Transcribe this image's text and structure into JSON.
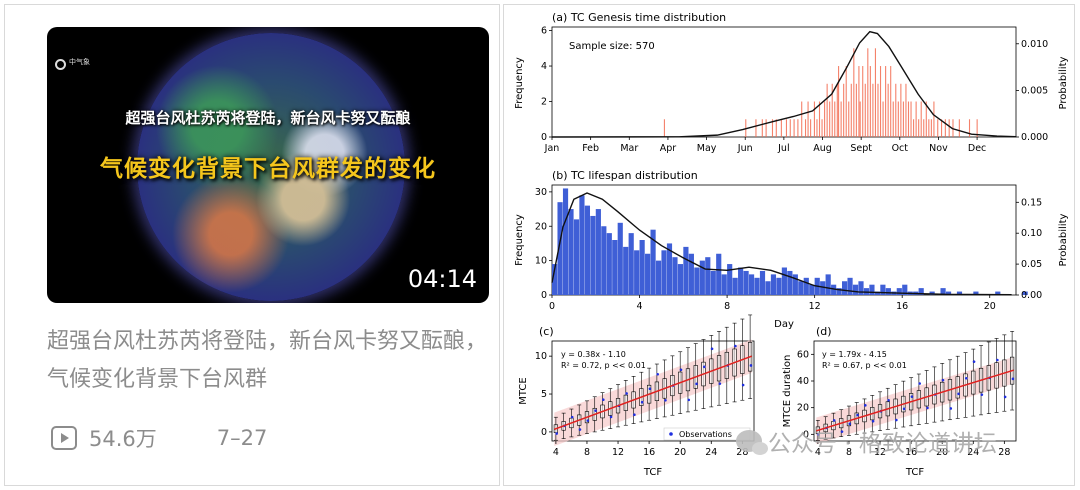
{
  "video": {
    "thumb_logo": "中气象",
    "thumb_line1": "超强台风杜苏芮将登陆，新台风卡努又酝酿",
    "thumb_line2": "气候变化背景下台风群发的变化",
    "duration": "04:14",
    "title": "超强台风杜苏芮将登陆，新台风卡努又酝酿，气候变化背景下台风群",
    "views": "54.6万",
    "date": "7–27"
  },
  "watermark": "公众号 · 格致论道讲坛",
  "icons": {
    "views": "play-icon",
    "watermark": "wechat-icon"
  },
  "colors": {
    "genesis_bars": "#f26b50",
    "lifespan_bars": "#3f5fd6",
    "fit_line": "#e02020",
    "band": "#f6c9c9",
    "curve": "#111111"
  },
  "chart_data": [
    {
      "type": "bar",
      "title": "(a) TC Genesis time distribution",
      "annotation": "Sample size: 570",
      "xlabel": "",
      "ylabel": "Frequency",
      "y2label": "Probability",
      "x_ticks": [
        "Jan",
        "Feb",
        "Mar",
        "Apr",
        "May",
        "Jun",
        "Jul",
        "Aug",
        "Sept",
        "Oct",
        "Nov",
        "Dec"
      ],
      "y_ticks": [
        0,
        2,
        4,
        6
      ],
      "y2_ticks": [
        "0.000",
        "0.005",
        "0.010"
      ],
      "xlim": [
        0,
        365
      ],
      "ylim": [
        0,
        6.2
      ],
      "y2lim": [
        0,
        0.0118
      ],
      "bars": [
        [
          88,
          1
        ],
        [
          152,
          1
        ],
        [
          160,
          1
        ],
        [
          165,
          1
        ],
        [
          168,
          1
        ],
        [
          173,
          1
        ],
        [
          176,
          1
        ],
        [
          180,
          1
        ],
        [
          184,
          1
        ],
        [
          187,
          1
        ],
        [
          190,
          1
        ],
        [
          193,
          1
        ],
        [
          196,
          2
        ],
        [
          199,
          1
        ],
        [
          201,
          2
        ],
        [
          203,
          1
        ],
        [
          206,
          2
        ],
        [
          208,
          1
        ],
        [
          210,
          2
        ],
        [
          212,
          1
        ],
        [
          214,
          2
        ],
        [
          216,
          3
        ],
        [
          218,
          2
        ],
        [
          220,
          3
        ],
        [
          222,
          2
        ],
        [
          224,
          3
        ],
        [
          225,
          4
        ],
        [
          227,
          2
        ],
        [
          229,
          3
        ],
        [
          231,
          4
        ],
        [
          233,
          2
        ],
        [
          235,
          3
        ],
        [
          237,
          5
        ],
        [
          239,
          3
        ],
        [
          241,
          4
        ],
        [
          242,
          2
        ],
        [
          244,
          4
        ],
        [
          246,
          3
        ],
        [
          248,
          5
        ],
        [
          250,
          4
        ],
        [
          252,
          3
        ],
        [
          254,
          5
        ],
        [
          256,
          3
        ],
        [
          258,
          4
        ],
        [
          260,
          2
        ],
        [
          262,
          4
        ],
        [
          264,
          3
        ],
        [
          266,
          4
        ],
        [
          268,
          2
        ],
        [
          270,
          3
        ],
        [
          272,
          2
        ],
        [
          274,
          3
        ],
        [
          276,
          2
        ],
        [
          278,
          3
        ],
        [
          280,
          2
        ],
        [
          282,
          2
        ],
        [
          284,
          1
        ],
        [
          286,
          2
        ],
        [
          288,
          1
        ],
        [
          290,
          2
        ],
        [
          292,
          1
        ],
        [
          294,
          2
        ],
        [
          296,
          1
        ],
        [
          298,
          1
        ],
        [
          300,
          2
        ],
        [
          303,
          1
        ],
        [
          306,
          1
        ],
        [
          309,
          1
        ],
        [
          312,
          1
        ],
        [
          315,
          1
        ],
        [
          320,
          1
        ],
        [
          328,
          1
        ],
        [
          334,
          1
        ]
      ],
      "curve": [
        [
          0,
          0
        ],
        [
          100,
          2e-05
        ],
        [
          130,
          0.0002
        ],
        [
          150,
          0.0008
        ],
        [
          175,
          0.0017
        ],
        [
          190,
          0.0022
        ],
        [
          205,
          0.0028
        ],
        [
          220,
          0.0046
        ],
        [
          232,
          0.0075
        ],
        [
          242,
          0.0101
        ],
        [
          250,
          0.0113
        ],
        [
          256,
          0.0111
        ],
        [
          265,
          0.0097
        ],
        [
          275,
          0.0075
        ],
        [
          288,
          0.0046
        ],
        [
          300,
          0.0024
        ],
        [
          315,
          0.0009
        ],
        [
          330,
          0.0003
        ],
        [
          350,
          0.0001
        ],
        [
          365,
          3e-05
        ]
      ]
    },
    {
      "type": "bar",
      "title": "(b) TC lifespan distribution",
      "xlabel": "Day",
      "ylabel": "Frequency",
      "y2label": "Probability",
      "x_ticks": [
        "0",
        "4",
        "8",
        "12",
        "16",
        "20"
      ],
      "y_ticks": [
        0,
        10,
        20,
        30
      ],
      "y2_ticks": [
        "0.00",
        "0.05",
        "0.10",
        "0.15"
      ],
      "xlim": [
        0,
        21.2
      ],
      "ylim": [
        0,
        32
      ],
      "y2lim": [
        0,
        0.178
      ],
      "bin_width": 0.25,
      "values": [
        9,
        27,
        31,
        25,
        22,
        29,
        26,
        23,
        25,
        20,
        18,
        16,
        21,
        14,
        18,
        13,
        16,
        12,
        19,
        10,
        13,
        15,
        11,
        9,
        14,
        12,
        8,
        10,
        11,
        7,
        12,
        6,
        9,
        5,
        8,
        7,
        6,
        5,
        7,
        4,
        6,
        5,
        8,
        7,
        6,
        4,
        5,
        3,
        5,
        4,
        6,
        3,
        2,
        4,
        5,
        3,
        4,
        2,
        3,
        1,
        3,
        2,
        1,
        2,
        3,
        1,
        1,
        2,
        0,
        1,
        0,
        2,
        1,
        0,
        1,
        0,
        0,
        1,
        0,
        0,
        0,
        1,
        0,
        0,
        0,
        0,
        1,
        0
      ],
      "curve": [
        [
          0,
          0.02
        ],
        [
          0.5,
          0.11
        ],
        [
          1.0,
          0.155
        ],
        [
          1.6,
          0.165
        ],
        [
          2.3,
          0.155
        ],
        [
          3.0,
          0.135
        ],
        [
          4.0,
          0.105
        ],
        [
          5.0,
          0.08
        ],
        [
          6.0,
          0.06
        ],
        [
          7.0,
          0.042
        ],
        [
          8.0,
          0.04
        ],
        [
          9.0,
          0.045
        ],
        [
          10.0,
          0.04
        ],
        [
          11.0,
          0.028
        ],
        [
          12.0,
          0.015
        ],
        [
          13.0,
          0.009
        ],
        [
          14.0,
          0.005
        ],
        [
          16.0,
          0.003
        ],
        [
          18.0,
          0.001
        ],
        [
          21.0,
          0.0004
        ]
      ]
    },
    {
      "type": "box",
      "title": "(c)",
      "xlabel": "TCF",
      "ylabel": "MTCE",
      "equation": "y = 0.38x - 1.10",
      "stats": "R² = 0.72, p << 0.01",
      "legend": "Observations",
      "legend_position": "bottom-right",
      "x_ticks": [
        4,
        8,
        12,
        16,
        20,
        24,
        28
      ],
      "y_ticks": [
        0,
        5,
        10
      ],
      "xlim": [
        3.5,
        29.5
      ],
      "ylim": [
        -1.2,
        12
      ],
      "fit": {
        "slope": 0.38,
        "intercept": -1.1
      },
      "band_halfwidth": 2.2,
      "spread": 0.1
    },
    {
      "type": "box",
      "title": "(d)",
      "xlabel": "TCF",
      "ylabel": "MTCE duration",
      "equation": "y = 1.79x - 4.15",
      "stats": "R² = 0.67, p << 0.01",
      "x_ticks": [
        4,
        8,
        12,
        16,
        20,
        24,
        28
      ],
      "y_ticks": [
        0,
        20,
        40,
        60
      ],
      "xlim": [
        3.5,
        29.5
      ],
      "ylim": [
        -5,
        70
      ],
      "fit": {
        "slope": 1.79,
        "intercept": -4.15
      },
      "band_halfwidth": 10,
      "spread": 0.55
    }
  ]
}
